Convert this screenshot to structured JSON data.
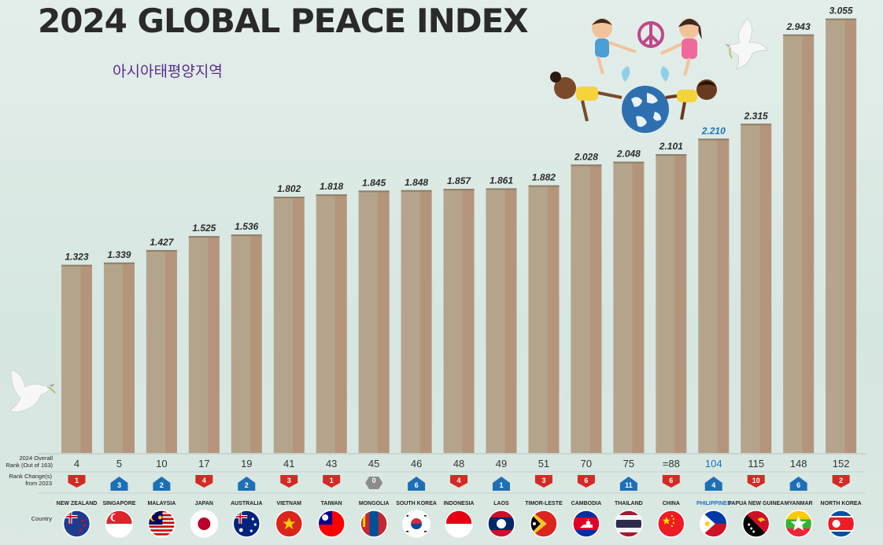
{
  "header": {
    "title": "2024 GLOBAL PEACE INDEX",
    "subtitle": "아시아태평양지역"
  },
  "row_labels": {
    "rank": [
      "2024 Overall",
      "Rank (Out of 163)"
    ],
    "change": [
      "Rank Change(s)",
      "from 2023"
    ],
    "country": [
      "Country"
    ]
  },
  "colors": {
    "bar": "#b5a48c",
    "bar_shade": "#b38870",
    "up": "#1f6fb5",
    "down": "#d42a25",
    "neutral": "#8c8c8c",
    "highlight": "#1a73b8"
  },
  "icons": [
    "dove-icon",
    "children-globe-illustration",
    "peace-sign-icon",
    "flag-icon",
    "arrow-up-icon",
    "arrow-down-icon"
  ],
  "chart_data": {
    "type": "bar",
    "title": "2024 GLOBAL PEACE INDEX",
    "subtitle": "아시아태평양지역",
    "ylim": [
      0,
      3.1
    ],
    "grid": false,
    "highlight": "PHILIPPINES",
    "categories": [
      "NEW ZEALAND",
      "SINGAPORE",
      "MALAYSIA",
      "JAPAN",
      "AUSTRALIA",
      "VIETNAM",
      "TAIWAN",
      "MONGOLIA",
      "SOUTH KOREA",
      "INDONESIA",
      "LAOS",
      "TIMOR-LESTE",
      "CAMBODIA",
      "THAILAND",
      "CHINA",
      "PHILIPPINES",
      "PAPUA NEW GUINEA",
      "MYANMAR",
      "NORTH KOREA"
    ],
    "values": [
      1.323,
      1.339,
      1.427,
      1.525,
      1.536,
      1.802,
      1.818,
      1.845,
      1.848,
      1.857,
      1.861,
      1.882,
      2.028,
      2.048,
      2.101,
      2.21,
      2.315,
      2.943,
      3.055
    ],
    "value_labels": [
      "1.323",
      "1.339",
      "1.427",
      "1.525",
      "1.536",
      "1.802",
      "1.818",
      "1.845",
      "1.848",
      "1.857",
      "1.861",
      "1.882",
      "2.028",
      "2.048",
      "2.101",
      "2.210",
      "2.315",
      "2.943",
      "3.055"
    ],
    "rank_labels": [
      "4",
      "5",
      "10",
      "17",
      "19",
      "41",
      "43",
      "45",
      "46",
      "48",
      "49",
      "51",
      "70",
      "75",
      "=88",
      "104",
      "115",
      "148",
      "152"
    ],
    "change_values": [
      1,
      3,
      2,
      4,
      2,
      3,
      1,
      0,
      6,
      4,
      1,
      3,
      6,
      11,
      6,
      4,
      10,
      6,
      2
    ],
    "change_direction": [
      "down",
      "up",
      "up",
      "down",
      "up",
      "down",
      "down",
      "neutral",
      "up",
      "down",
      "up",
      "down",
      "down",
      "up",
      "down",
      "up",
      "down",
      "up",
      "down"
    ]
  }
}
